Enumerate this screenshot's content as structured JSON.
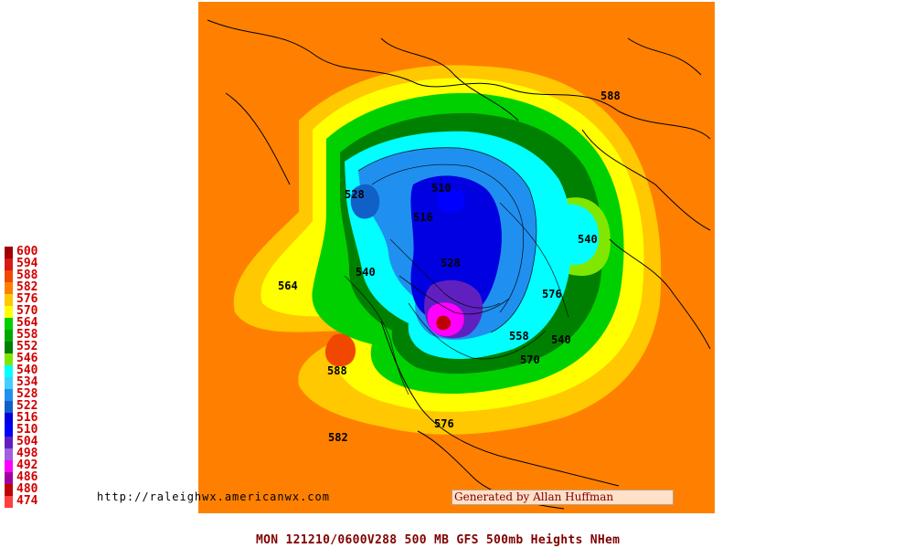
{
  "legend": {
    "items": [
      {
        "label": "600",
        "color": "#a00000"
      },
      {
        "label": "594",
        "color": "#d81818"
      },
      {
        "label": "588",
        "color": "#f04800"
      },
      {
        "label": "582",
        "color": "#ff8000"
      },
      {
        "label": "576",
        "color": "#ffc800"
      },
      {
        "label": "570",
        "color": "#ffff00"
      },
      {
        "label": "564",
        "color": "#00d000"
      },
      {
        "label": "558",
        "color": "#00a800"
      },
      {
        "label": "552",
        "color": "#008000"
      },
      {
        "label": "546",
        "color": "#80e800"
      },
      {
        "label": "540",
        "color": "#00ffff"
      },
      {
        "label": "534",
        "color": "#40d0ff"
      },
      {
        "label": "528",
        "color": "#2090f0"
      },
      {
        "label": "522",
        "color": "#1060c8"
      },
      {
        "label": "516",
        "color": "#0000e0"
      },
      {
        "label": "510",
        "color": "#0000ff"
      },
      {
        "label": "504",
        "color": "#6020c0"
      },
      {
        "label": "498",
        "color": "#a060e0"
      },
      {
        "label": "492",
        "color": "#ff00ff"
      },
      {
        "label": "486",
        "color": "#a000a0"
      },
      {
        "label": "480",
        "color": "#c00000"
      },
      {
        "label": "474",
        "color": "#ff4040"
      }
    ]
  },
  "contour_labels": [
    {
      "text": "588"
    },
    {
      "text": "564"
    },
    {
      "text": "588"
    },
    {
      "text": "582"
    },
    {
      "text": "576"
    },
    {
      "text": "570"
    },
    {
      "text": "540"
    },
    {
      "text": "540"
    },
    {
      "text": "528"
    },
    {
      "text": "528"
    },
    {
      "text": "510"
    },
    {
      "text": "516"
    },
    {
      "text": "558"
    },
    {
      "text": "540"
    },
    {
      "text": "576"
    }
  ],
  "credits": {
    "url": "http://raleighwx.americanwx.com",
    "author": "Generated by Allan Huffman"
  },
  "footer": "MON 121210/0600V288   500 MB GFS 500mb Heights NHem"
}
